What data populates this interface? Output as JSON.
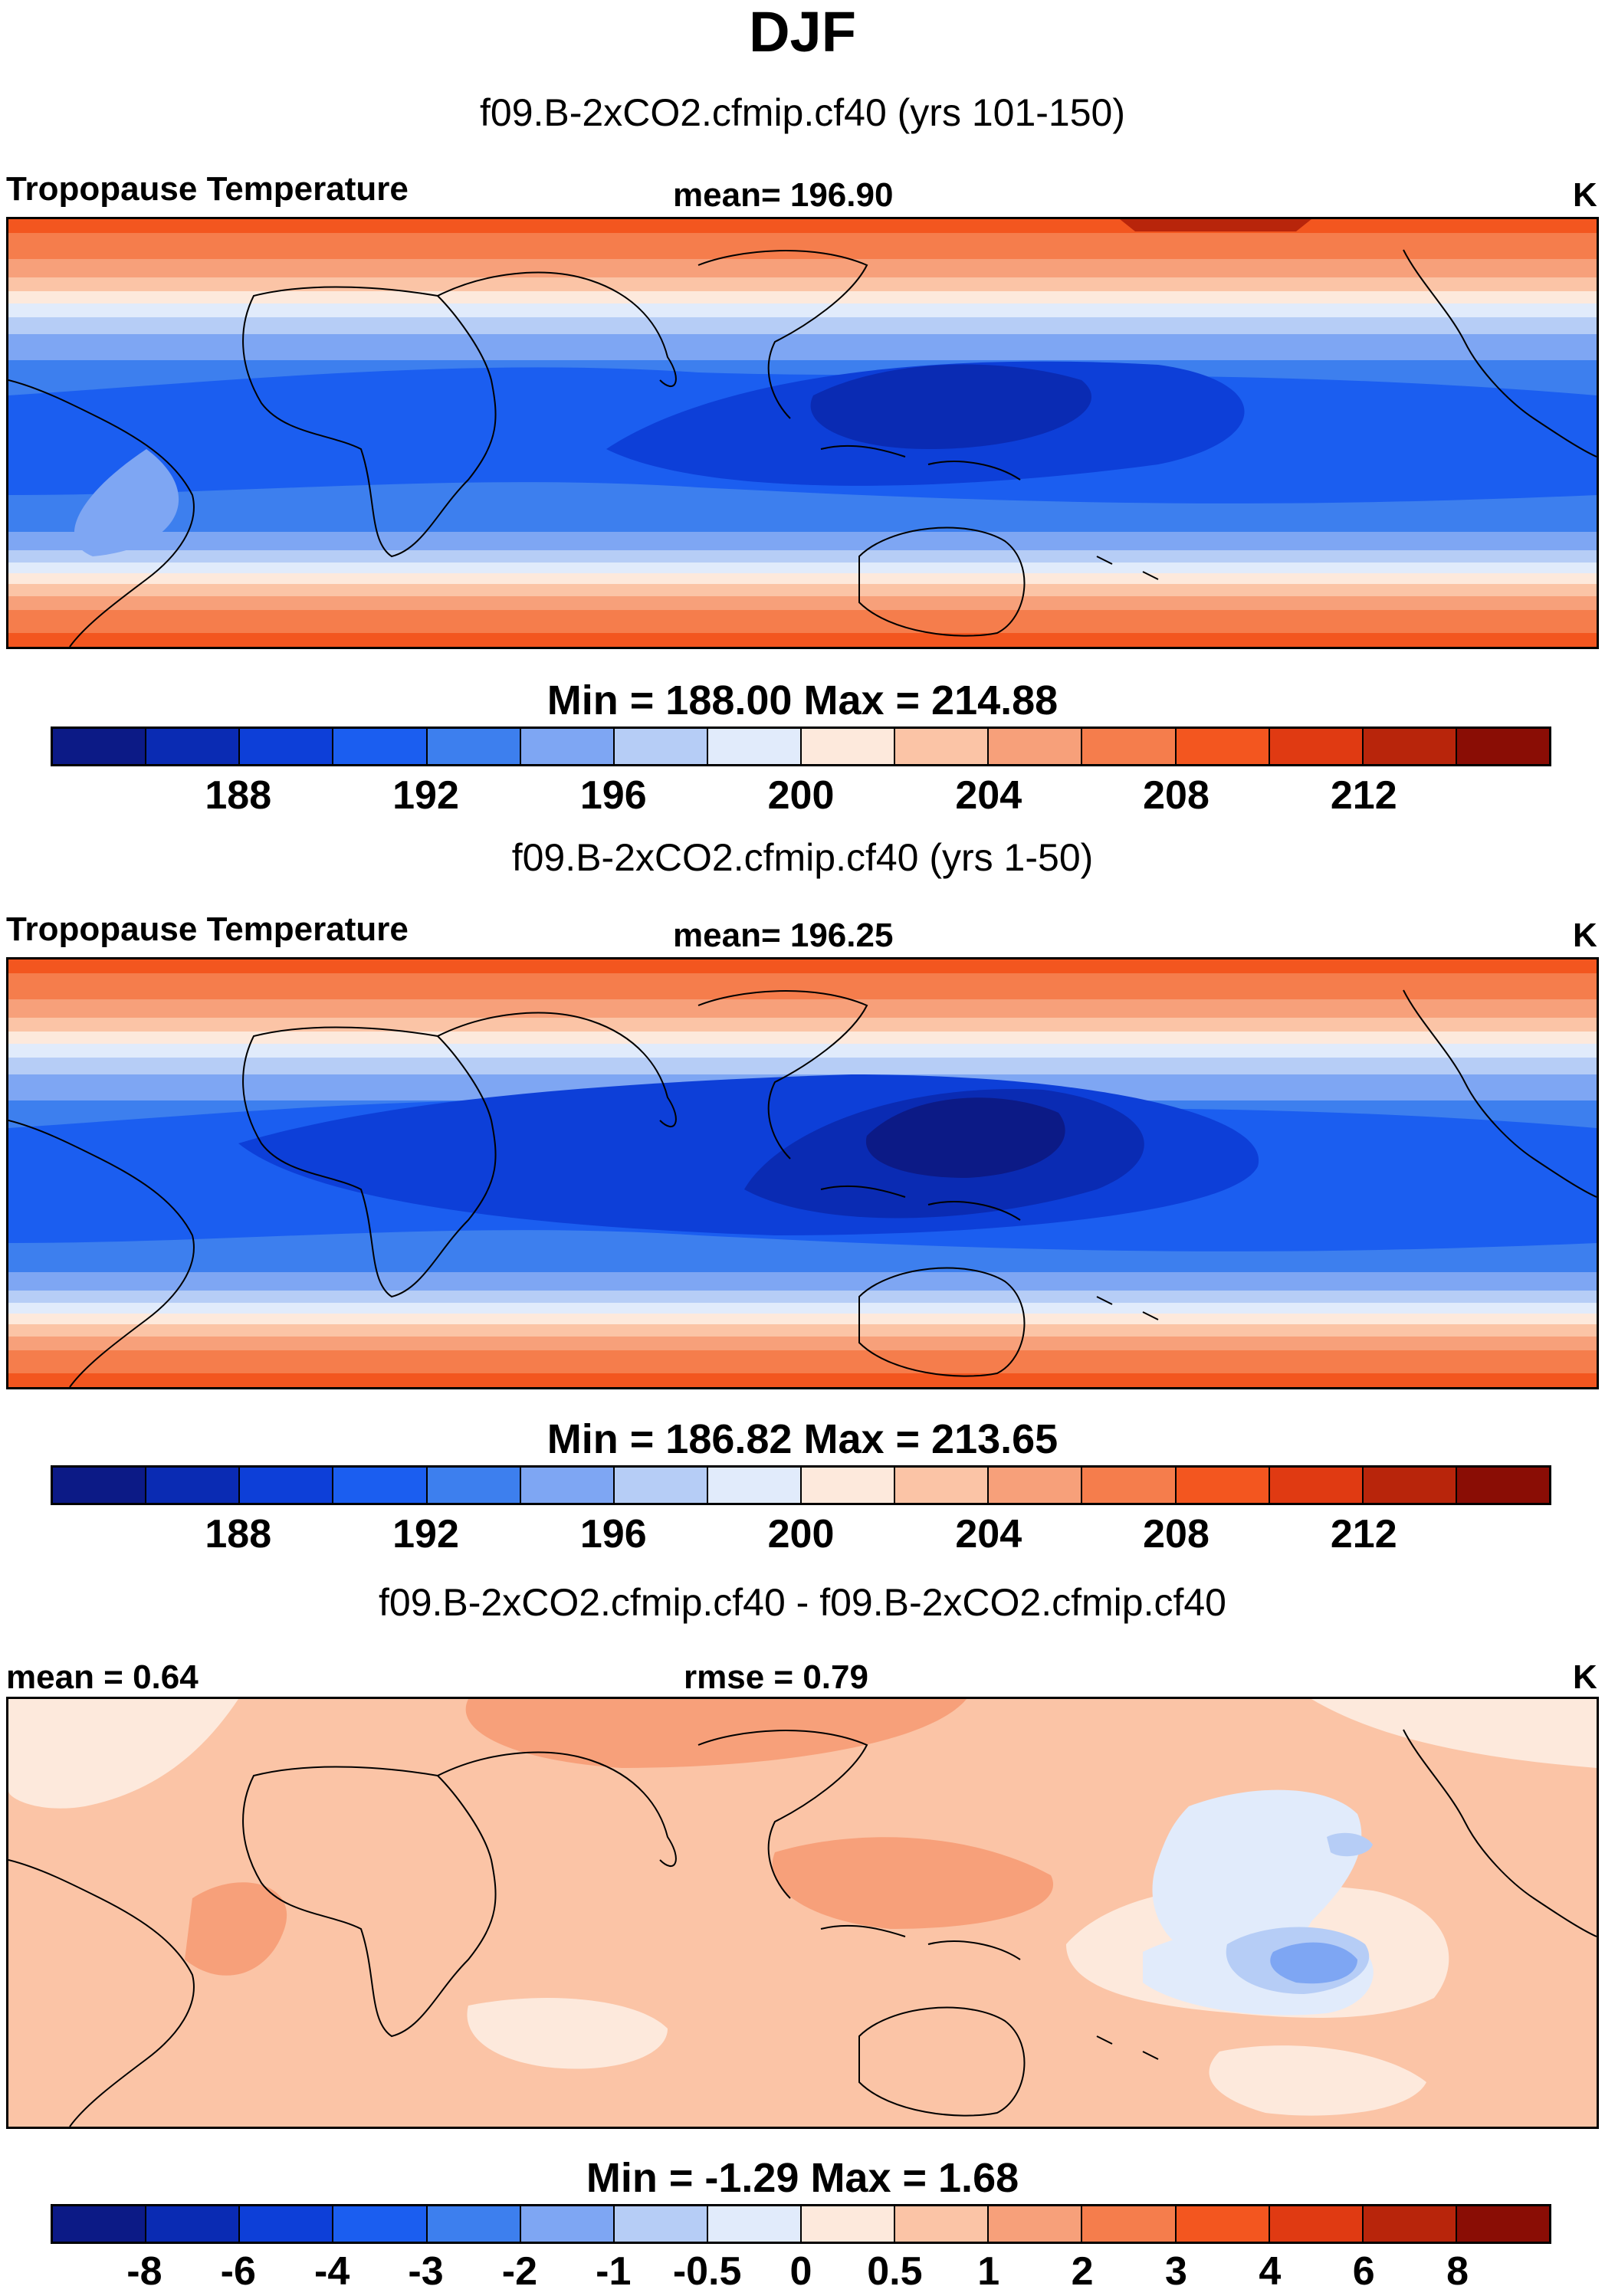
{
  "title": "DJF",
  "colors": {
    "scale": [
      "#0c1a86",
      "#0a2bb3",
      "#0d3fd8",
      "#1b5ef0",
      "#3d7fee",
      "#7ea6f3",
      "#b6cdf6",
      "#e1ebfb",
      "#fde9dc",
      "#fbc4a6",
      "#f7a07a",
      "#f57d4c",
      "#f3561f",
      "#e03a12",
      "#b8250b",
      "#8a0d05"
    ],
    "diff_scale": [
      "#0c1a86",
      "#0a2bb3",
      "#0d3fd8",
      "#1b5ef0",
      "#3d7fee",
      "#7ea6f3",
      "#b6cdf6",
      "#e1ebfb",
      "#fde9dc",
      "#fbc4a6",
      "#f7a07a",
      "#f57d4c",
      "#f3561f",
      "#e03a12",
      "#b8250b",
      "#8a0d05"
    ],
    "coast": "#000000"
  },
  "panels": [
    {
      "subtitle": "f09.B-2xCO2.cfmip.cf40 (yrs 101-150)",
      "left_label": "Tropopause Temperature",
      "center_label": "mean= 196.90",
      "right_label": "K",
      "minmax": "Min = 188.00 Max = 214.88",
      "ticks": [
        "188",
        "192",
        "196",
        "200",
        "204",
        "208",
        "212"
      ]
    },
    {
      "subtitle": "f09.B-2xCO2.cfmip.cf40 (yrs 1-50)",
      "left_label": "Tropopause Temperature",
      "center_label": "mean= 196.25",
      "right_label": "K",
      "minmax": "Min = 186.82 Max = 213.65",
      "ticks": [
        "188",
        "192",
        "196",
        "200",
        "204",
        "208",
        "212"
      ]
    },
    {
      "subtitle": "f09.B-2xCO2.cfmip.cf40 - f09.B-2xCO2.cfmip.cf40",
      "left_label": "mean =   0.64",
      "center_label": "rmse =   0.79",
      "right_label": "K",
      "minmax": "Min =  -1.29 Max =   1.68",
      "ticks": [
        "-8",
        "-6",
        "-4",
        "-3",
        "-2",
        "-1",
        "-0.5",
        "0",
        "0.5",
        "1",
        "2",
        "3",
        "4",
        "6",
        "8"
      ]
    }
  ]
}
